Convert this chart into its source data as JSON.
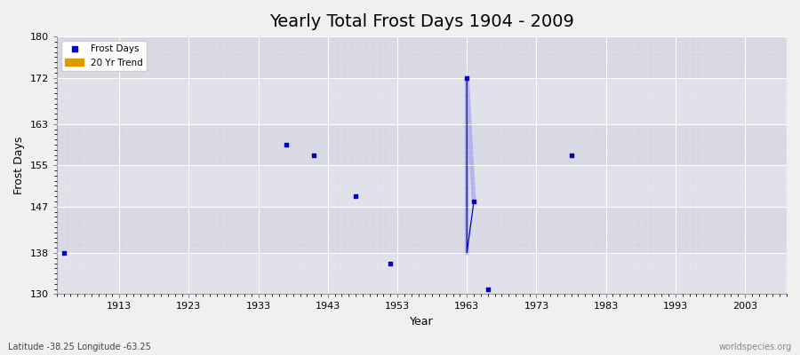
{
  "title": "Yearly Total Frost Days 1904 - 2009",
  "xlabel": "Year",
  "ylabel": "Frost Days",
  "xlim": [
    1904,
    2009
  ],
  "ylim": [
    130,
    180
  ],
  "yticks": [
    130,
    138,
    147,
    155,
    163,
    172,
    180
  ],
  "xticks": [
    1913,
    1923,
    1933,
    1943,
    1953,
    1963,
    1973,
    1983,
    1993,
    2003
  ],
  "background_color": "#e8e8ee",
  "plot_bg_color": "#dcdce8",
  "grid_color": "#ffffff",
  "frost_days_color": "#0000cc",
  "trend_color": "#8888dd",
  "trend_line_color": "#aaaaee",
  "marker": "s",
  "marker_size": 3,
  "data_points": [
    [
      1905,
      138
    ],
    [
      1937,
      159
    ],
    [
      1941,
      157
    ],
    [
      1947,
      149
    ],
    [
      1952,
      136
    ],
    [
      1963,
      172
    ],
    [
      1964,
      148
    ],
    [
      1966,
      131
    ],
    [
      1978,
      157
    ]
  ],
  "dark_line": [
    [
      1963,
      172
    ],
    [
      1963,
      138
    ],
    [
      1964,
      148
    ]
  ],
  "light_line": [
    [
      1963,
      138
    ],
    [
      1963,
      172
    ],
    [
      1964,
      148
    ]
  ],
  "legend_labels": [
    "Frost Days",
    "20 Yr Trend"
  ],
  "legend_colors": [
    "#0000cc",
    "#dd9900"
  ],
  "footnote_left": "Latitude -38.25 Longitude -63.25",
  "footnote_right": "worldspecies.org",
  "title_fontsize": 14,
  "label_fontsize": 9,
  "tick_fontsize": 8,
  "footnote_fontsize": 7
}
